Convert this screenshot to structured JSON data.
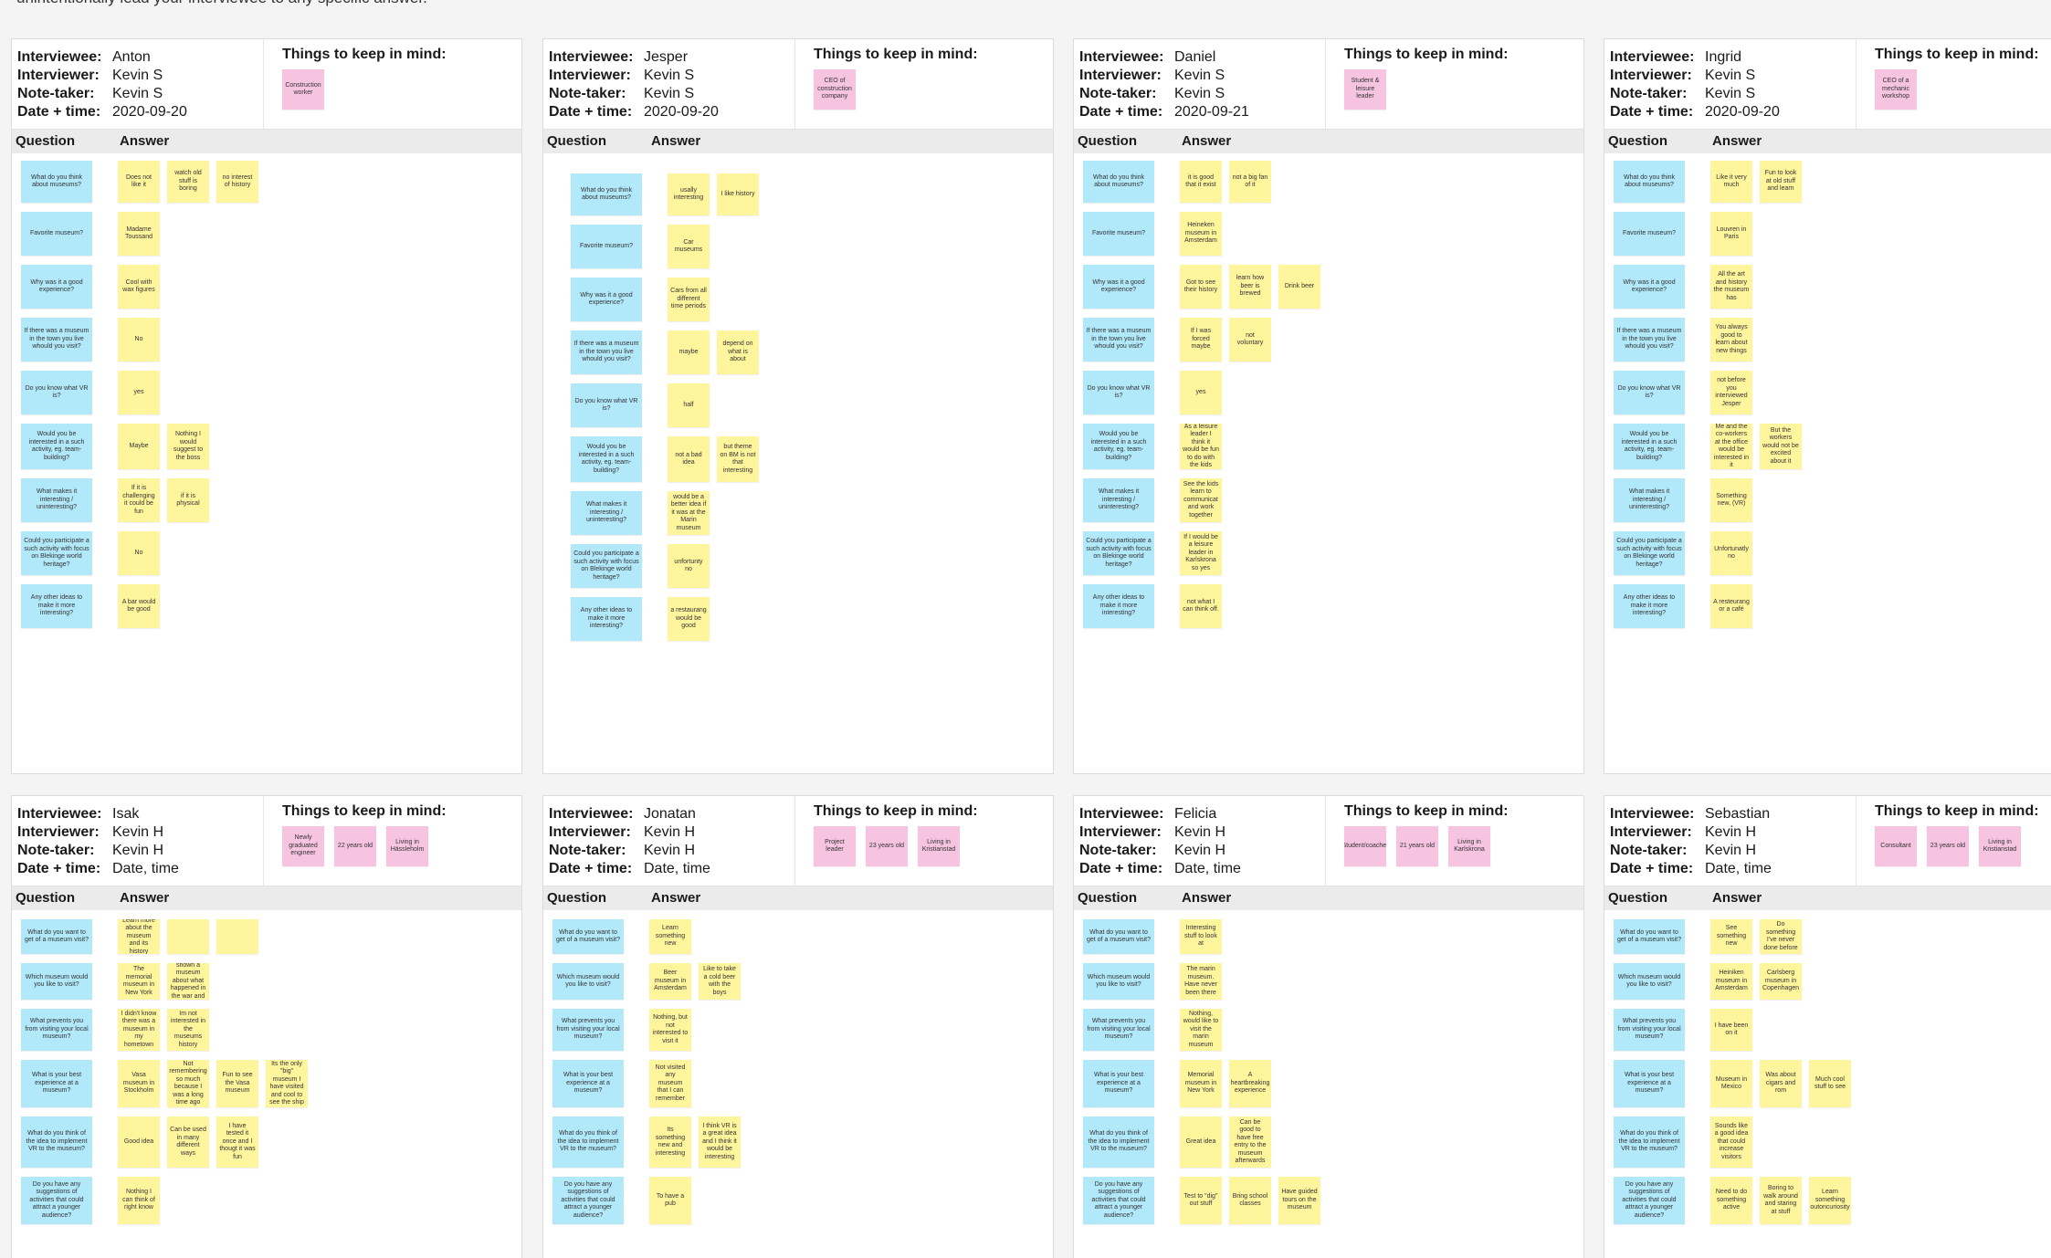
{
  "intro_text": "unintentionally lead your interviewee to any specific answer.",
  "labels": {
    "interviewee": "Interviewee:",
    "interviewer": "Interviewer:",
    "note_taker": "Note-taker:",
    "date_time": "Date + time:",
    "keep_in_mind": "Things to keep in mind:",
    "question": "Question",
    "answer": "Answer"
  },
  "colors": {
    "question_note": "#b1e8fa",
    "answer_note": "#fff59d",
    "keep_note": "#f6c4e0",
    "column_bar": "#ebebeb"
  },
  "boards": [
    {
      "interviewee": "Anton",
      "interviewer": "Kevin S",
      "note_taker": "Kevin S",
      "date_time": "2020-09-20",
      "keep": [
        "Construction worker"
      ],
      "rows": [
        {
          "q": "What do you think about museums?",
          "a": [
            "Does not like it",
            "watch old stuff is boring",
            "no interest of history"
          ]
        },
        {
          "q": "Favorite museum?",
          "a": [
            "Madame Toussand"
          ]
        },
        {
          "q": "Why was it a good experience?",
          "a": [
            "Cool with wax figures"
          ]
        },
        {
          "q": "If there was a museum in the town you live whould you visit?",
          "a": [
            "No"
          ]
        },
        {
          "q": "Do you know what VR is?",
          "a": [
            "yes"
          ]
        },
        {
          "q": "Would you be interested in a such activity, eg. team-building?",
          "a": [
            "Maybe",
            "Nothing I would suggest to the boss"
          ]
        },
        {
          "q": "What makes it interesting / uninteresting?",
          "a": [
            "If it is challenging it could be fun",
            "if it is physical"
          ]
        },
        {
          "q": "Could you participate a such activity with focus on Blekinge world heritage?",
          "a": [
            "No"
          ]
        },
        {
          "q": "Any other ideas to make it more interesting?",
          "a": [
            "A bar would be good"
          ]
        }
      ]
    },
    {
      "interviewee": "Jesper",
      "interviewer": "Kevin S",
      "note_taker": "Kevin S",
      "date_time": "2020-09-20",
      "keep": [
        "CEO of construction company"
      ],
      "rows": [
        {
          "q": "What do you think about museums?",
          "a": [
            "usally interesting",
            "I like history"
          ]
        },
        {
          "q": "Favorite museum?",
          "a": [
            "Car museums"
          ]
        },
        {
          "q": "Why was it a good experience?",
          "a": [
            "Cars from all different time periods"
          ]
        },
        {
          "q": "If there was a museum in the town you live whould you visit?",
          "a": [
            "maybe",
            "depend on what is about"
          ]
        },
        {
          "q": "Do you know what VR is?",
          "a": [
            "half"
          ]
        },
        {
          "q": "Would you be interested in a such activity, eg. team-building?",
          "a": [
            "not a bad idea",
            "but theme on BM is not that interesting"
          ]
        },
        {
          "q": "What makes it interesting / uninteresting?",
          "a": [
            "would be a better idea if it was at the Marin museum"
          ]
        },
        {
          "q": "Could you participate a such activity with focus on Blekinge world heritage?",
          "a": [
            "unfortunty no"
          ]
        },
        {
          "q": "Any other ideas to make it more interesting?",
          "a": [
            "a restaurang would be good"
          ]
        }
      ]
    },
    {
      "interviewee": "Daniel",
      "interviewer": "Kevin S",
      "note_taker": "Kevin S",
      "date_time": "2020-09-21",
      "keep": [
        "Student & leisure leader"
      ],
      "rows": [
        {
          "q": "What do you think about museums?",
          "a": [
            "it is good that it exist",
            "not a big fan of it"
          ]
        },
        {
          "q": "Favorite museum?",
          "a": [
            "Heineken museum in Amsterdam"
          ]
        },
        {
          "q": "Why was it a good experience?",
          "a": [
            "Got to see their history",
            "learn how beer is brewed",
            "Drink beer"
          ]
        },
        {
          "q": "If there was a museum in the town you live whould you visit?",
          "a": [
            "If I was forced maybe",
            "not voluntary"
          ]
        },
        {
          "q": "Do you know what VR is?",
          "a": [
            "yes"
          ]
        },
        {
          "q": "Would you be interested in a such activity, eg. team-building?",
          "a": [
            "As a leisure leader I think it would be fun to do with the kids"
          ]
        },
        {
          "q": "What makes it interesting / uninteresting?",
          "a": [
            "See the kids learn to communicat and work together"
          ]
        },
        {
          "q": "Could you participate a such activity with focus on Blekinge world heritage?",
          "a": [
            "If I would be a leisure leader in Karlskrona so yes"
          ]
        },
        {
          "q": "Any other ideas to make it more interesting?",
          "a": [
            "not what I can think off."
          ]
        }
      ]
    },
    {
      "interviewee": "Ingrid",
      "interviewer": "Kevin S",
      "note_taker": "Kevin S",
      "date_time": "2020-09-20",
      "keep": [
        "CEO of a mechanic workshop"
      ],
      "rows": [
        {
          "q": "What do you think about museums?",
          "a": [
            "Like it very much",
            "Fun to look at old stuff and learn"
          ]
        },
        {
          "q": "Favorite museum?",
          "a": [
            "Louvren in Paris"
          ]
        },
        {
          "q": "Why was it a good experience?",
          "a": [
            "All the art and history the museum has"
          ]
        },
        {
          "q": "If there was a museum in the town you live whould you visit?",
          "a": [
            "You always good to learn about new things"
          ]
        },
        {
          "q": "Do you know what VR is?",
          "a": [
            "not before you interviewed Jesper"
          ]
        },
        {
          "q": "Would you be interested in a such activity, eg. team-building?",
          "a": [
            "Me and the co-workers at the office would be interested in it",
            "But the workers would not be excited about it"
          ]
        },
        {
          "q": "What makes it interesting / uninteresting?",
          "a": [
            "Something new, (VR)"
          ]
        },
        {
          "q": "Could you participate a such activity with focus on Blekinge world heritage?",
          "a": [
            "Unfortunatly no"
          ]
        },
        {
          "q": "Any other ideas to make it more interesting?",
          "a": [
            "A resteurang or a café"
          ]
        }
      ]
    },
    {
      "interviewee": "Isak",
      "interviewer": "Kevin H",
      "note_taker": "Kevin H",
      "date_time": "Date, time",
      "keep": [
        "Newly graduated engineer",
        "22 years old",
        "Living in Hässleholm"
      ],
      "rows": [
        {
          "q": "What do you want to get of a museum visit?",
          "a": [
            "Learn more about the museum and its history",
            "",
            ""
          ]
        },
        {
          "q": "Which museum would you like to visit?",
          "a": [
            "The memorial museum in New York",
            "Something historic and I'd like to be shown a museum about what happened in the war and what has happened recently"
          ]
        },
        {
          "q": "What prevents you from visiting your local museum?",
          "a": [
            "I didn't know there was a museum in my hometown",
            "Im not interested in the museums history"
          ]
        },
        {
          "q": "What is your best experience at a museum?",
          "a": [
            "Vasa museum in Stockholm",
            "Not remembering so much because I was a long time ago",
            "Fun to see the Vasa museum",
            "Its the only \"big\" museum I have visited and cool to see the ship"
          ]
        },
        {
          "q": "What do you think of the idea to implement VR to the museum?",
          "a": [
            "Good idea",
            "Can be used in many different ways",
            "I have tested it once and I thougt it was fun"
          ]
        },
        {
          "q": "Do you have any suggestions of activities that could attract a younger audience?",
          "a": [
            "Nothing I can think of right know"
          ]
        }
      ]
    },
    {
      "interviewee": "Jonatan",
      "interviewer": "Kevin H",
      "note_taker": "Kevin H",
      "date_time": "Date, time",
      "keep": [
        "Project leader",
        "23 years old",
        "Living in Kristianstad"
      ],
      "rows": [
        {
          "q": "What do you want to get of a museum visit?",
          "a": [
            "Learn something new"
          ]
        },
        {
          "q": "Which museum would you like to visit?",
          "a": [
            "Beer museum in Amsterdam",
            "Like to take a cold beer with the boys"
          ]
        },
        {
          "q": "What prevents you from visiting your local museum?",
          "a": [
            "Nothing, but not interested to visit it"
          ]
        },
        {
          "q": "What is your best experience at a museum?",
          "a": [
            "Not visited any museum that I can remember"
          ]
        },
        {
          "q": "What do you think of the idea to implement VR to the museum?",
          "a": [
            "Its something new and interesting",
            "I think VR is a great idea and I think it would be interesting"
          ]
        },
        {
          "q": "Do you have any suggestions of activities that could attract a younger audience?",
          "a": [
            "To have a pub"
          ]
        }
      ]
    },
    {
      "interviewee": "Felicia",
      "interviewer": "Kevin H",
      "note_taker": "Kevin H",
      "date_time": "Date, time",
      "keep": [
        "Student/coacher",
        "21 years old",
        "Living in Karlskrona"
      ],
      "rows": [
        {
          "q": "What do you want to get of a museum visit?",
          "a": [
            "Interesting stuff to look at"
          ]
        },
        {
          "q": "Which museum would you like to visit?",
          "a": [
            "The marin museum. Have never been there"
          ]
        },
        {
          "q": "What prevents you from visiting your local museum?",
          "a": [
            "Nothing, would like to visit the marin museum"
          ]
        },
        {
          "q": "What is your best experience at a museum?",
          "a": [
            "Memorial museum in New York",
            "A heartbreaking experience"
          ]
        },
        {
          "q": "What do you think of the idea to implement VR to the museum?",
          "a": [
            "Great idea",
            "Can be good to have free entry to the museum afterwards"
          ]
        },
        {
          "q": "Do you have any suggestions of activities that could attract a younger audience?",
          "a": [
            "Test to \"dig\" out stuff",
            "Bring school classes",
            "Have guided tours on the museum"
          ]
        }
      ]
    },
    {
      "interviewee": "Sebastian",
      "interviewer": "Kevin H",
      "note_taker": "Kevin H",
      "date_time": "Date, time",
      "keep": [
        "Consultant",
        "23 years old",
        "Living in Kristianstad"
      ],
      "rows": [
        {
          "q": "What do you want to get of a museum visit?",
          "a": [
            "See something new",
            "Do something I've never done before"
          ]
        },
        {
          "q": "Which museum would you like to visit?",
          "a": [
            "Heiniken museum in Amsterdam",
            "Carlsberg museum in Copenhagen"
          ]
        },
        {
          "q": "What prevents you from visiting your local museum?",
          "a": [
            "I have been on it"
          ]
        },
        {
          "q": "What is your best experience at a museum?",
          "a": [
            "Museum in Mexico",
            "Was about cigars and rom",
            "Much cool stuff to see"
          ]
        },
        {
          "q": "What do you think of the idea to implement VR to the museum?",
          "a": [
            "Sounds like a good idea that could increase visitors"
          ]
        },
        {
          "q": "Do you have any suggestions of activities that could attract a younger audience?",
          "a": [
            "Need to do something active",
            "Boring to walk around and staring at stuff",
            "Learn something outoncuriosity"
          ]
        }
      ]
    }
  ]
}
